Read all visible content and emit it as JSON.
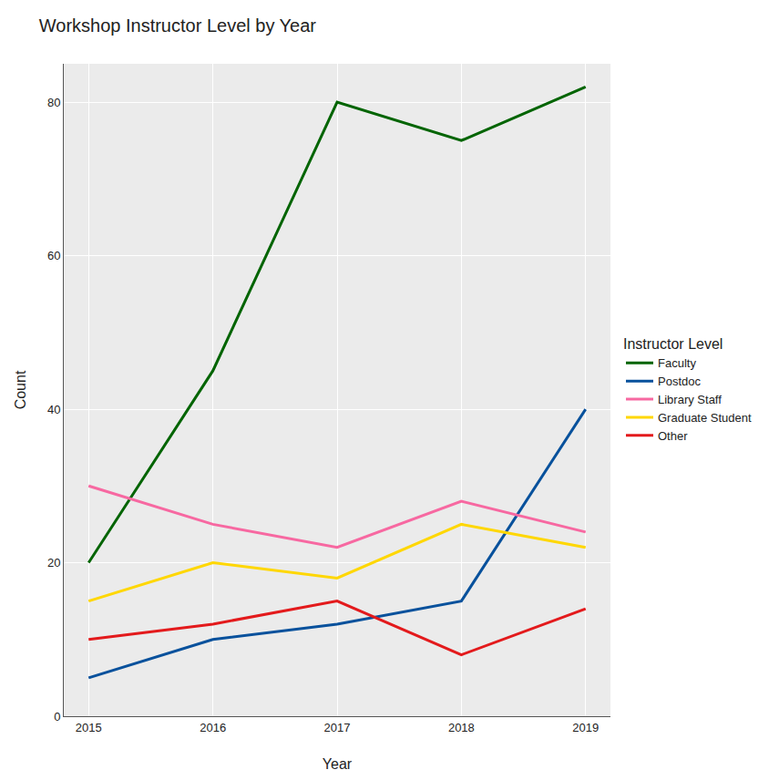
{
  "chart_data": {
    "type": "line",
    "title": "Workshop Instructor Level by Year",
    "x_label": "Year",
    "y_label": "Count",
    "x": [
      2015,
      2016,
      2017,
      2018,
      2019
    ],
    "xlim": [
      2014.8,
      2019.2
    ],
    "xticks": [
      2015,
      2016,
      2017,
      2018,
      2019
    ],
    "ylim": [
      0,
      85
    ],
    "yticks": [
      0,
      20,
      40,
      60,
      80
    ],
    "grid": true,
    "legend": "right",
    "legend_title": "Instructor Level",
    "series": [
      {
        "name": "Faculty",
        "color": "#006400",
        "values": [
          20,
          45,
          80,
          75,
          82
        ]
      },
      {
        "name": "Postdoc",
        "color": "#08519c",
        "values": [
          5,
          10,
          12,
          15,
          40
        ]
      },
      {
        "name": "Library Staff",
        "color": "#f768a1",
        "values": [
          30,
          25,
          22,
          28,
          24
        ]
      },
      {
        "name": "Graduate Student",
        "color": "#ffd700",
        "values": [
          15,
          20,
          18,
          25,
          22
        ]
      },
      {
        "name": "Other",
        "color": "#e31a1c",
        "values": [
          10,
          12,
          15,
          8,
          14
        ]
      }
    ]
  }
}
